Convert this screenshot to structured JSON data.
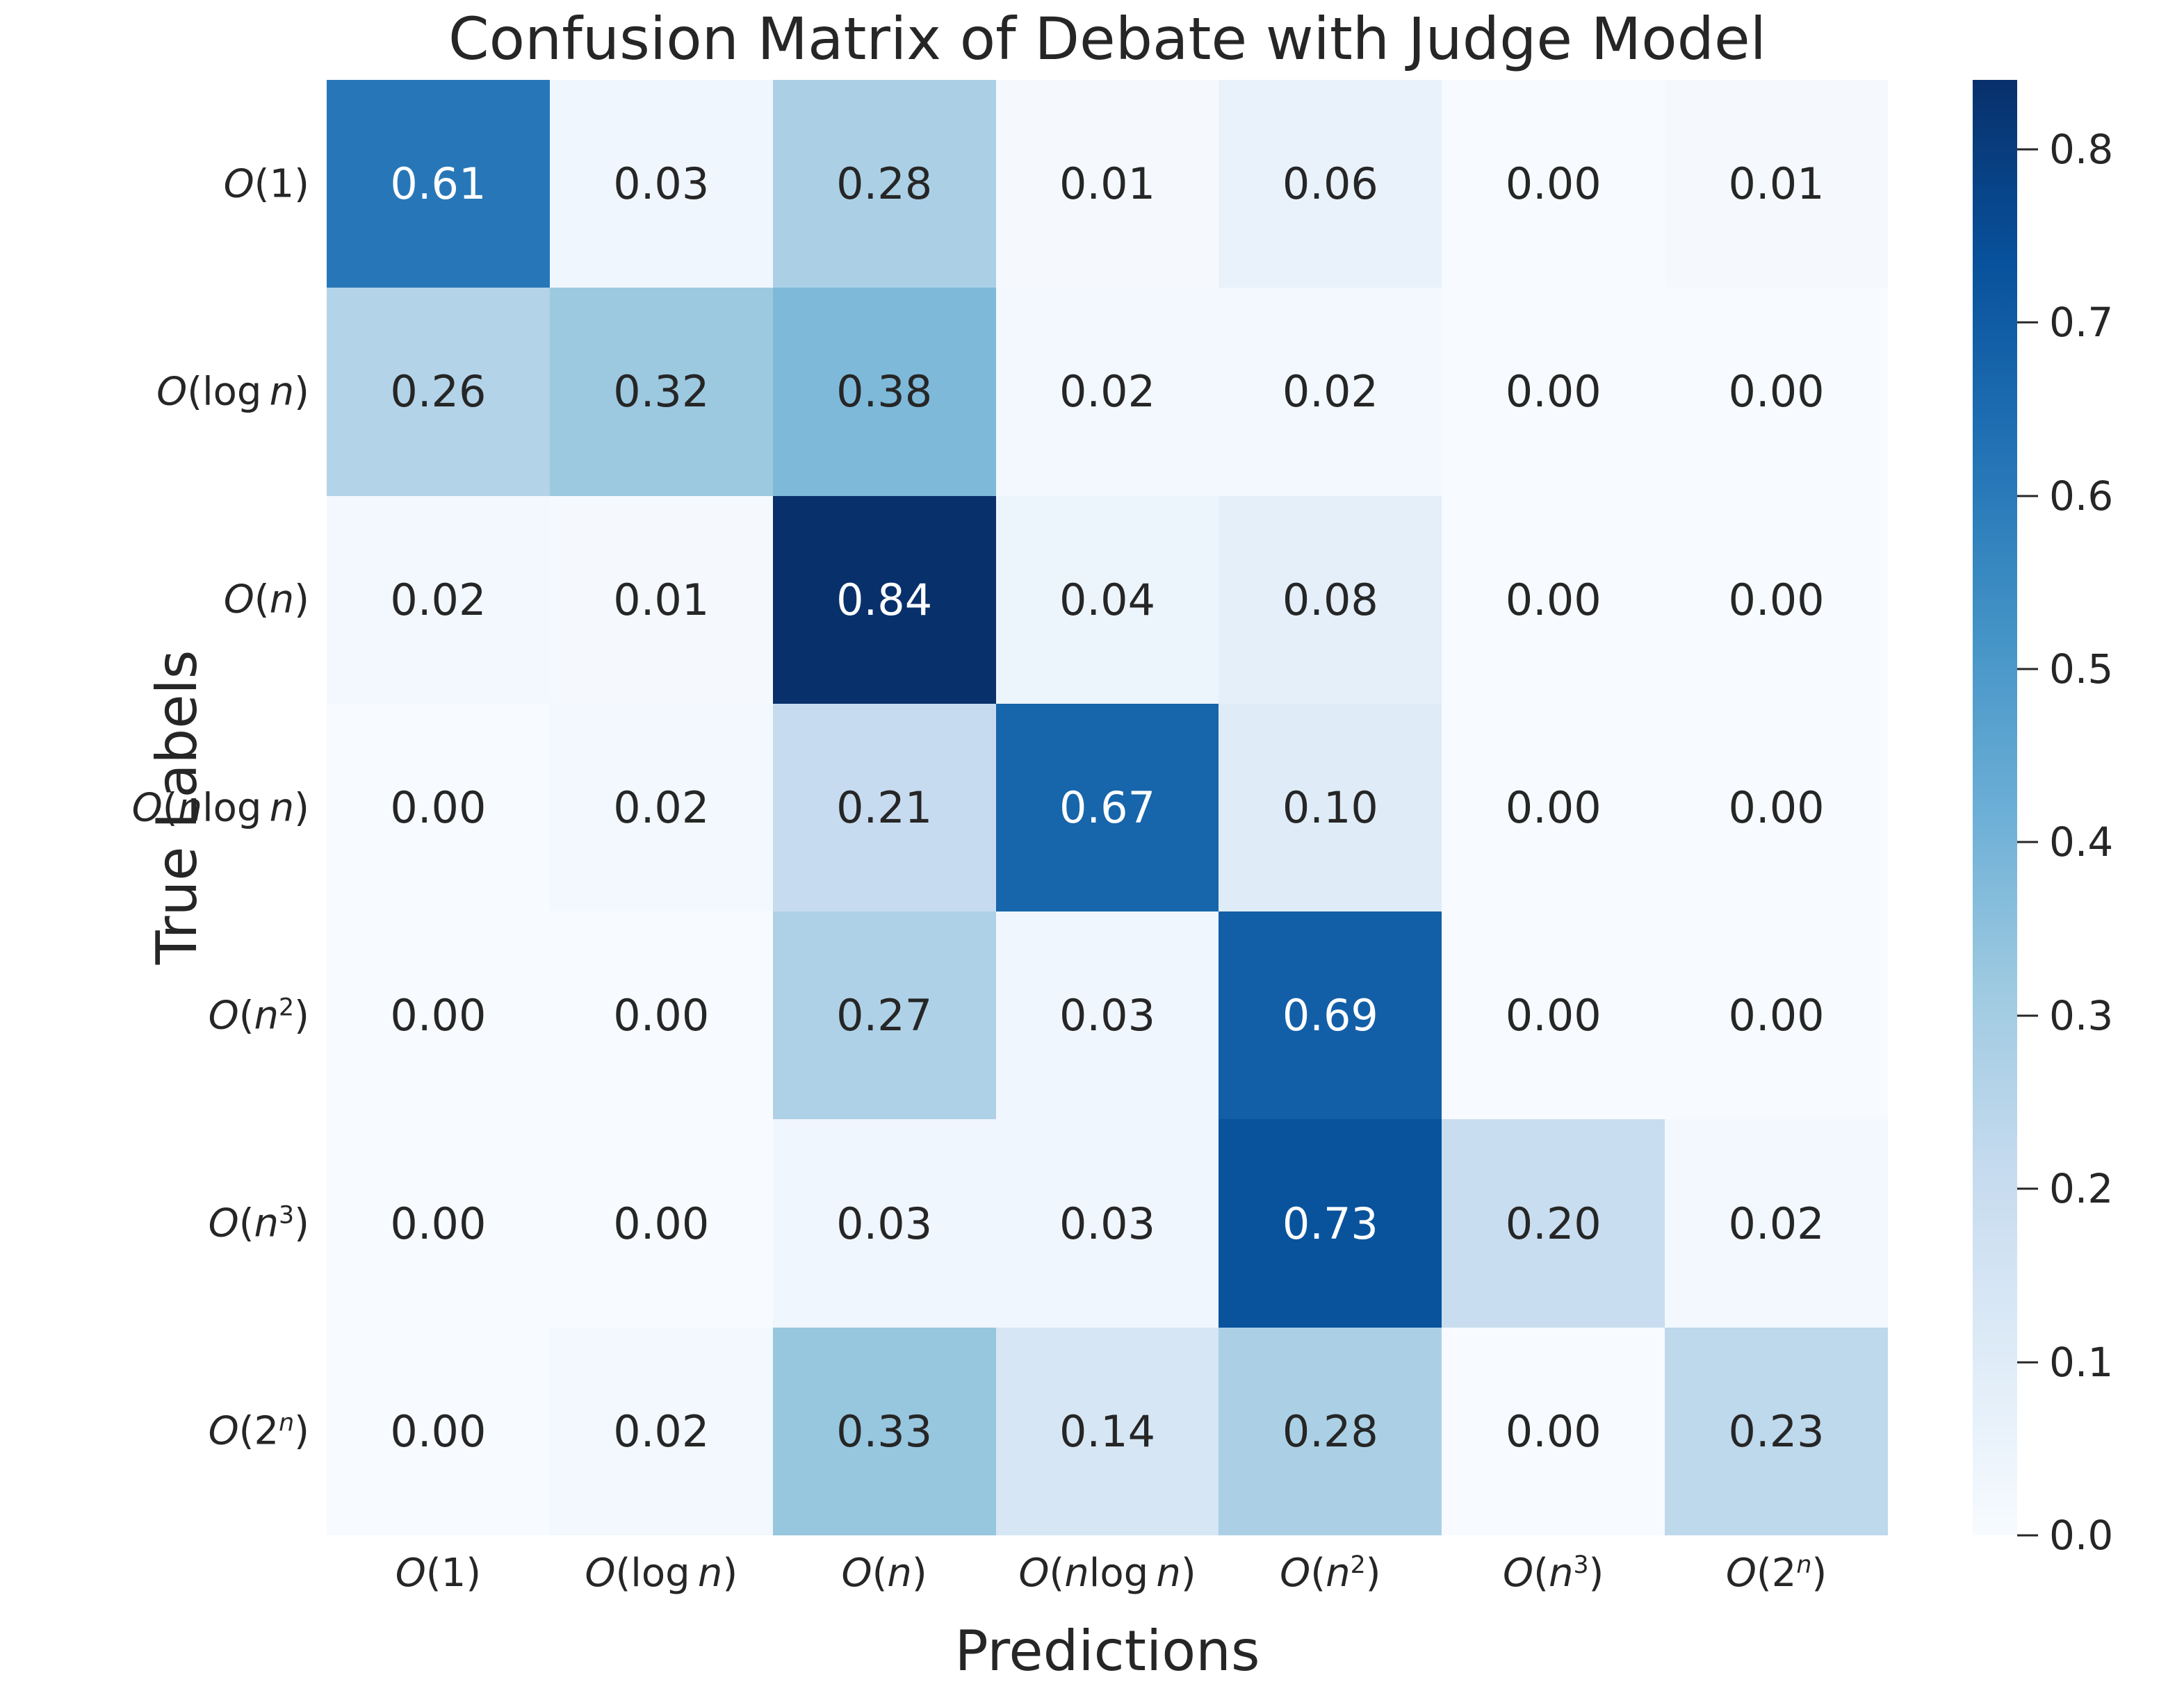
{
  "chart_data": {
    "type": "heatmap",
    "title": "Confusion Matrix of Debate with Judge Model",
    "xlabel": "Predictions",
    "ylabel": "True Labels",
    "x_tick_labels": [
      "O(1)",
      "O(log n)",
      "O(n)",
      "O(n log n)",
      "O(n^2)",
      "O(n^3)",
      "O(2^n)"
    ],
    "y_tick_labels": [
      "O(1)",
      "O(log n)",
      "O(n)",
      "O(n log n)",
      "O(n^2)",
      "O(n^3)",
      "O(2^n)"
    ],
    "matrix": [
      [
        0.61,
        0.03,
        0.28,
        0.01,
        0.06,
        0.0,
        0.01
      ],
      [
        0.26,
        0.32,
        0.38,
        0.02,
        0.02,
        0.0,
        0.0
      ],
      [
        0.02,
        0.01,
        0.84,
        0.04,
        0.08,
        0.0,
        0.0
      ],
      [
        0.0,
        0.02,
        0.21,
        0.67,
        0.1,
        0.0,
        0.0
      ],
      [
        0.0,
        0.0,
        0.27,
        0.03,
        0.69,
        0.0,
        0.0
      ],
      [
        0.0,
        0.0,
        0.03,
        0.03,
        0.73,
        0.2,
        0.02
      ],
      [
        0.0,
        0.02,
        0.33,
        0.14,
        0.28,
        0.0,
        0.23
      ]
    ],
    "value_decimals": 2,
    "vmin": 0.0,
    "vmax": 0.84,
    "colormap": {
      "name": "Blues",
      "anchors": [
        "#f7fbff",
        "#deebf7",
        "#c6dbef",
        "#9ecae1",
        "#6baed6",
        "#4292c6",
        "#2171b5",
        "#08519c",
        "#08306b"
      ]
    },
    "colorbar_ticks": [
      "0.8",
      "0.7",
      "0.6",
      "0.5",
      "0.4",
      "0.3",
      "0.2",
      "0.1",
      "0.0"
    ],
    "annotation_text_colors": {
      "on_light": "#262626",
      "on_dark": "#ffffff"
    },
    "legend_position": "right-colorbar",
    "grid": false
  }
}
